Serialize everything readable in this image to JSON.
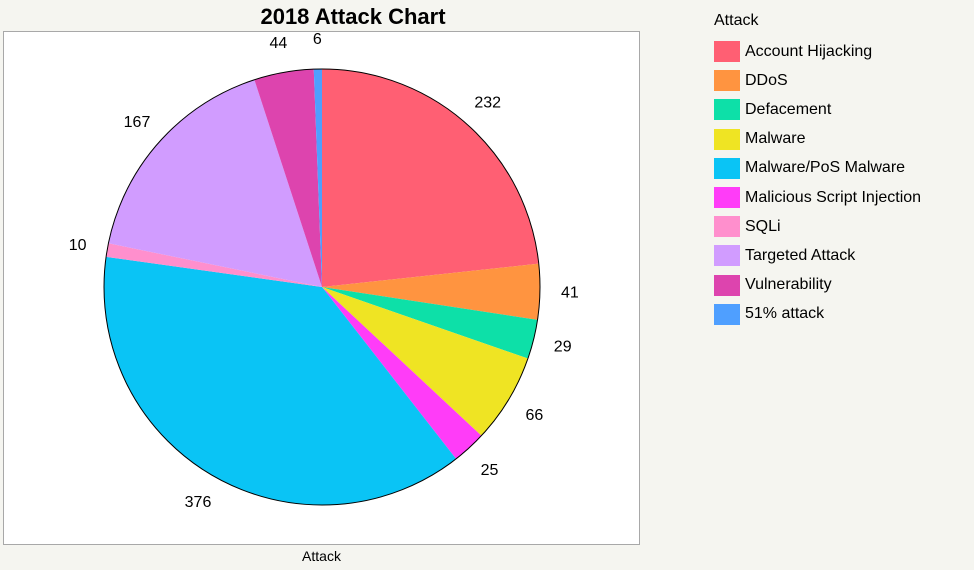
{
  "chart_data": {
    "type": "pie",
    "title": "2018 Attack Chart",
    "xlabel": "Attack",
    "legend_title": "Attack",
    "legend_position": "right",
    "slices": [
      {
        "label": "Account Hijacking",
        "value": 232,
        "color": "#ff5f73"
      },
      {
        "label": "DDoS",
        "value": 41,
        "color": "#ff9440"
      },
      {
        "label": "Defacement",
        "value": 29,
        "color": "#0de0a8"
      },
      {
        "label": "Malware",
        "value": 66,
        "color": "#efe423"
      },
      {
        "label": "Malware/PoS Malware",
        "value": 376,
        "color": "#0ac4f5"
      },
      {
        "label": "Malicious Script Injection",
        "value": 25,
        "color": "#ff3cf8"
      },
      {
        "label": "SQLi",
        "value": 10,
        "color": "#ff8fcd"
      },
      {
        "label": "Targeted Attack",
        "value": 167,
        "color": "#d19cff"
      },
      {
        "label": "Vulnerability",
        "value": 44,
        "color": "#dd44ae"
      },
      {
        "label": "51% attack",
        "value": 6,
        "color": "#4f9fff"
      }
    ],
    "display_order": [
      0,
      1,
      2,
      3,
      5,
      4,
      6,
      7,
      8,
      9
    ]
  }
}
